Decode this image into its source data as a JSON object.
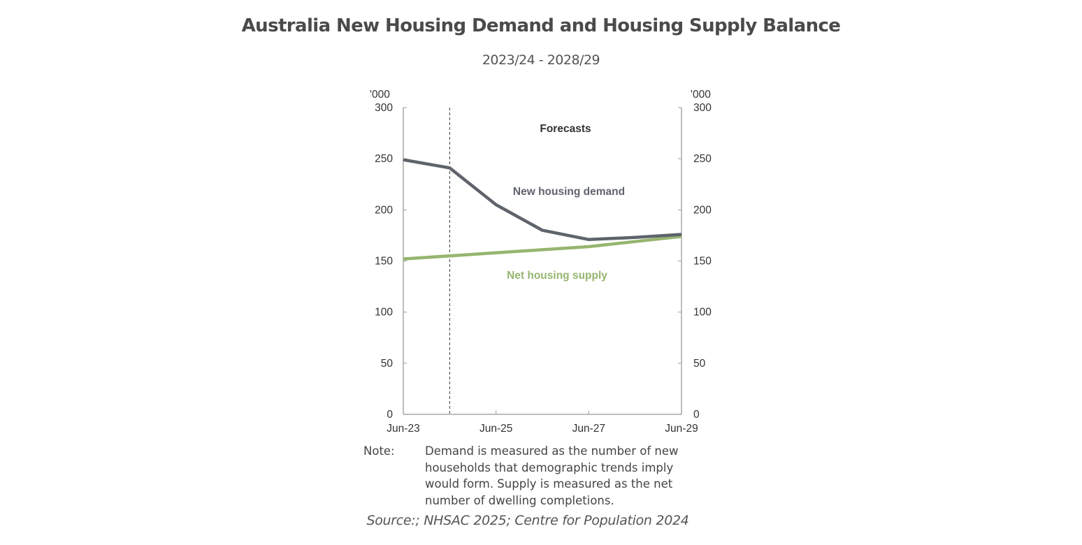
{
  "header": {
    "title": "Australia New Housing Demand and Housing Supply Balance",
    "subtitle": "2023/24 - 2028/29"
  },
  "note": {
    "label": "Note:",
    "text": "Demand is measured as the number of new households that demographic trends imply would form. Supply is measured as the net number of dwelling completions."
  },
  "source": "Source:; NHSAC 2025; Centre for Population 2024",
  "chart_data": {
    "type": "line",
    "title": "Australia New Housing Demand and Housing Supply Balance",
    "subtitle": "2023/24 - 2028/29",
    "xlabel": "",
    "ylabel": "'000",
    "ylabel_right": "'000",
    "x": [
      "Jun-23",
      "Jun-24",
      "Jun-25",
      "Jun-26",
      "Jun-27",
      "Jun-28",
      "Jun-29"
    ],
    "x_tick_labels": [
      "Jun-23",
      "Jun-25",
      "Jun-27",
      "Jun-29"
    ],
    "ylim": [
      0,
      300
    ],
    "y_ticks": [
      0,
      50,
      100,
      150,
      200,
      250,
      300
    ],
    "grid": false,
    "series": [
      {
        "name": "New housing demand",
        "color": "#5f636b",
        "values": [
          249,
          241,
          205,
          180,
          171,
          173,
          176
        ]
      },
      {
        "name": "Net housing supply",
        "color": "#96b56e",
        "values": [
          152,
          155,
          158,
          161,
          164,
          169,
          174
        ]
      }
    ],
    "annotations": [
      {
        "text": "Forecasts",
        "position": "top, right of dashed line"
      },
      {
        "type": "vertical-dashed-line",
        "x": "Jun-24",
        "meaning": "start of forecasts"
      }
    ],
    "legend": "inline labels next to lines"
  }
}
